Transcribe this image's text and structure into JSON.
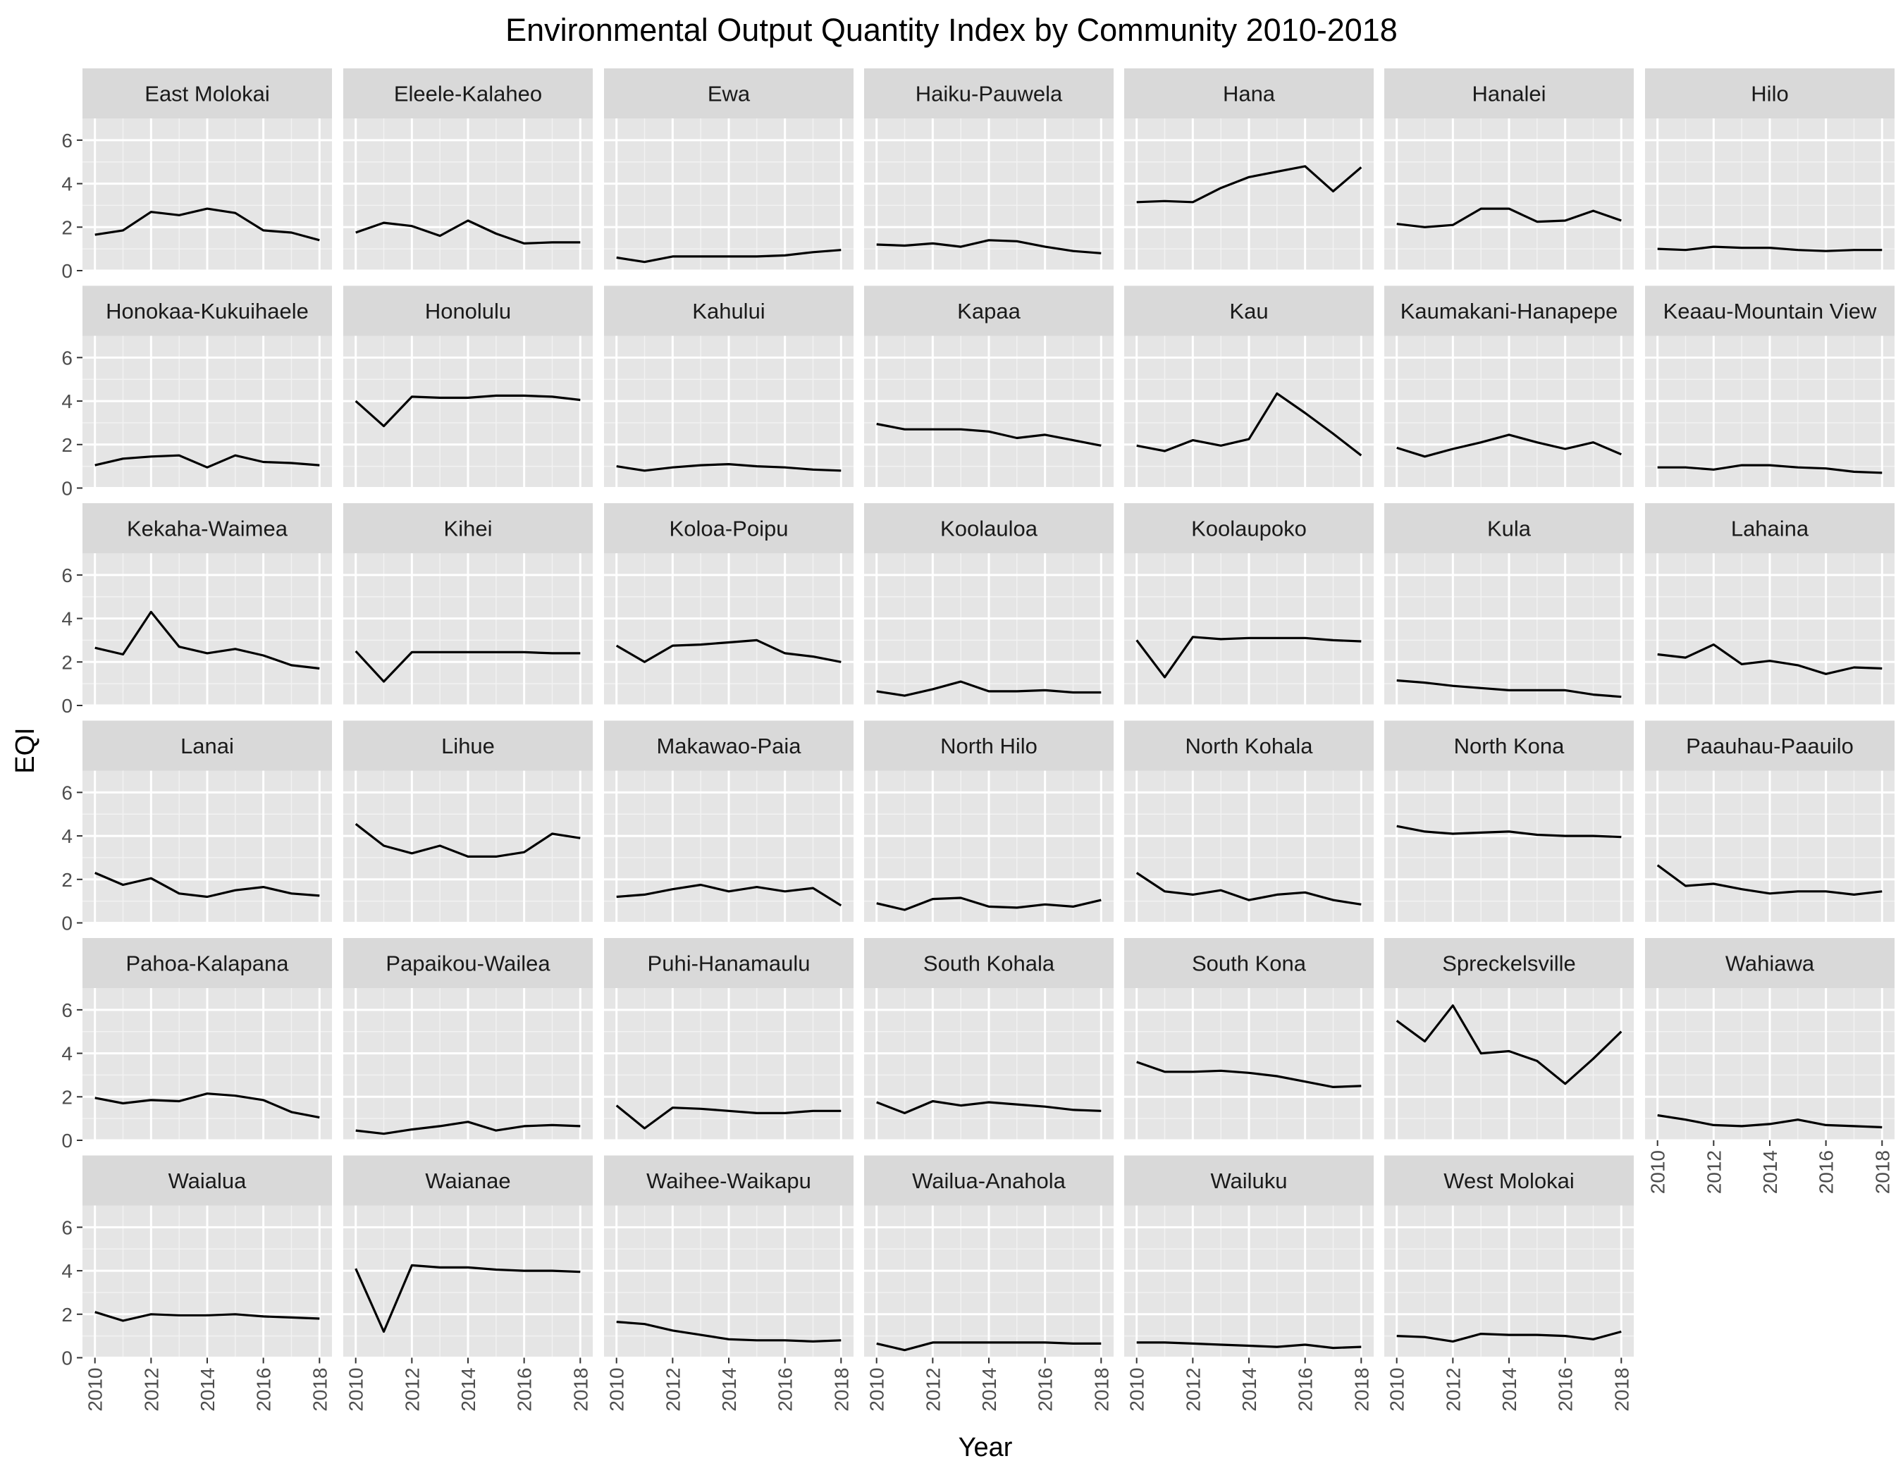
{
  "chart_data": {
    "type": "line",
    "title": "Environmental Output Quantity Index by Community 2010-2018",
    "xlabel": "Year",
    "ylabel": "EQI",
    "x": [
      2010,
      2011,
      2012,
      2013,
      2014,
      2015,
      2016,
      2017,
      2018
    ],
    "x_ticks": [
      2010,
      2012,
      2014,
      2016,
      2018
    ],
    "y_ticks": [
      0,
      2,
      4,
      6
    ],
    "xlim": [
      2010,
      2018
    ],
    "ylim": [
      0,
      7
    ],
    "grid": true,
    "facet_columns": 7,
    "line_color": "#000000",
    "panel_background": "#e5e5e5",
    "strip_background": "#d9d9d9",
    "series": [
      {
        "name": "East Molokai",
        "values": [
          1.65,
          1.85,
          2.7,
          2.55,
          2.85,
          2.65,
          1.85,
          1.75,
          1.4
        ]
      },
      {
        "name": "Eleele-Kalaheo",
        "values": [
          1.75,
          2.2,
          2.05,
          1.6,
          2.3,
          1.7,
          1.25,
          1.3,
          1.3
        ]
      },
      {
        "name": "Ewa",
        "values": [
          0.6,
          0.4,
          0.65,
          0.65,
          0.65,
          0.65,
          0.7,
          0.85,
          0.95
        ]
      },
      {
        "name": "Haiku-Pauwela",
        "values": [
          1.2,
          1.15,
          1.25,
          1.1,
          1.4,
          1.35,
          1.1,
          0.9,
          0.8
        ]
      },
      {
        "name": "Hana",
        "values": [
          3.15,
          3.2,
          3.15,
          3.8,
          4.3,
          4.55,
          4.8,
          3.65,
          4.75
        ]
      },
      {
        "name": "Hanalei",
        "values": [
          2.15,
          2.0,
          2.1,
          2.85,
          2.85,
          2.25,
          2.3,
          2.75,
          2.3
        ]
      },
      {
        "name": "Hilo",
        "values": [
          1.0,
          0.95,
          1.1,
          1.05,
          1.05,
          0.95,
          0.9,
          0.95,
          0.95
        ]
      },
      {
        "name": "Honokaa-Kukuihaele",
        "values": [
          1.05,
          1.35,
          1.45,
          1.5,
          0.95,
          1.5,
          1.2,
          1.15,
          1.05
        ]
      },
      {
        "name": "Honolulu",
        "values": [
          4.0,
          2.85,
          4.2,
          4.15,
          4.15,
          4.25,
          4.25,
          4.2,
          4.05
        ]
      },
      {
        "name": "Kahului",
        "values": [
          1.0,
          0.8,
          0.95,
          1.05,
          1.1,
          1.0,
          0.95,
          0.85,
          0.8
        ]
      },
      {
        "name": "Kapaa",
        "values": [
          2.95,
          2.7,
          2.7,
          2.7,
          2.6,
          2.3,
          2.45,
          2.2,
          1.95
        ]
      },
      {
        "name": "Kau",
        "values": [
          1.95,
          1.7,
          2.2,
          1.95,
          2.25,
          4.35,
          3.45,
          2.5,
          1.5
        ]
      },
      {
        "name": "Kaumakani-Hanapepe",
        "values": [
          1.85,
          1.45,
          1.8,
          2.1,
          2.45,
          2.1,
          1.8,
          2.1,
          1.55
        ]
      },
      {
        "name": "Keaau-Mountain View",
        "values": [
          0.95,
          0.95,
          0.85,
          1.05,
          1.05,
          0.95,
          0.9,
          0.75,
          0.7
        ]
      },
      {
        "name": "Kekaha-Waimea",
        "values": [
          2.65,
          2.35,
          4.3,
          2.7,
          2.4,
          2.6,
          2.3,
          1.85,
          1.7
        ]
      },
      {
        "name": "Kihei",
        "values": [
          2.5,
          1.1,
          2.45,
          2.45,
          2.45,
          2.45,
          2.45,
          2.4,
          2.4
        ]
      },
      {
        "name": "Koloa-Poipu",
        "values": [
          2.75,
          2.0,
          2.75,
          2.8,
          2.9,
          3.0,
          2.4,
          2.25,
          2.0
        ]
      },
      {
        "name": "Koolauloa",
        "values": [
          0.65,
          0.45,
          0.75,
          1.1,
          0.65,
          0.65,
          0.7,
          0.6,
          0.6
        ]
      },
      {
        "name": "Koolaupoko",
        "values": [
          3.0,
          1.3,
          3.15,
          3.05,
          3.1,
          3.1,
          3.1,
          3.0,
          2.95
        ]
      },
      {
        "name": "Kula",
        "values": [
          1.15,
          1.05,
          0.9,
          0.8,
          0.7,
          0.7,
          0.7,
          0.5,
          0.4
        ]
      },
      {
        "name": "Lahaina",
        "values": [
          2.35,
          2.2,
          2.8,
          1.9,
          2.05,
          1.85,
          1.45,
          1.75,
          1.7
        ]
      },
      {
        "name": "Lanai",
        "values": [
          2.3,
          1.75,
          2.05,
          1.35,
          1.2,
          1.5,
          1.65,
          1.35,
          1.25
        ]
      },
      {
        "name": "Lihue",
        "values": [
          4.55,
          3.55,
          3.2,
          3.55,
          3.05,
          3.05,
          3.25,
          4.1,
          3.9
        ]
      },
      {
        "name": "Makawao-Paia",
        "values": [
          1.2,
          1.3,
          1.55,
          1.75,
          1.45,
          1.65,
          1.45,
          1.6,
          0.8
        ]
      },
      {
        "name": "North Hilo",
        "values": [
          0.9,
          0.6,
          1.1,
          1.15,
          0.75,
          0.7,
          0.85,
          0.75,
          1.05
        ]
      },
      {
        "name": "North Kohala",
        "values": [
          2.3,
          1.45,
          1.3,
          1.5,
          1.05,
          1.3,
          1.4,
          1.05,
          0.85
        ]
      },
      {
        "name": "North Kona",
        "values": [
          4.45,
          4.2,
          4.1,
          4.15,
          4.2,
          4.05,
          4.0,
          4.0,
          3.95
        ]
      },
      {
        "name": "Paauhau-Paauilo",
        "values": [
          2.65,
          1.7,
          1.8,
          1.55,
          1.35,
          1.45,
          1.45,
          1.3,
          1.45
        ]
      },
      {
        "name": "Pahoa-Kalapana",
        "values": [
          1.95,
          1.7,
          1.85,
          1.8,
          2.15,
          2.05,
          1.85,
          1.3,
          1.05
        ]
      },
      {
        "name": "Papaikou-Wailea",
        "values": [
          0.45,
          0.3,
          0.5,
          0.65,
          0.85,
          0.45,
          0.65,
          0.7,
          0.65
        ]
      },
      {
        "name": "Puhi-Hanamaulu",
        "values": [
          1.6,
          0.55,
          1.5,
          1.45,
          1.35,
          1.25,
          1.25,
          1.35,
          1.35
        ]
      },
      {
        "name": "South Kohala",
        "values": [
          1.75,
          1.25,
          1.8,
          1.6,
          1.75,
          1.65,
          1.55,
          1.4,
          1.35
        ]
      },
      {
        "name": "South Kona",
        "values": [
          3.6,
          3.15,
          3.15,
          3.2,
          3.1,
          2.95,
          2.7,
          2.45,
          2.5
        ]
      },
      {
        "name": "Spreckelsville",
        "values": [
          5.5,
          4.55,
          6.2,
          4.0,
          4.1,
          3.65,
          2.6,
          3.75,
          5.0
        ]
      },
      {
        "name": "Wahiawa",
        "values": [
          1.15,
          0.95,
          0.7,
          0.65,
          0.75,
          0.95,
          0.7,
          0.65,
          0.6
        ]
      },
      {
        "name": "Waialua",
        "values": [
          2.1,
          1.7,
          2.0,
          1.95,
          1.95,
          2.0,
          1.9,
          1.85,
          1.8
        ]
      },
      {
        "name": "Waianae",
        "values": [
          4.1,
          1.2,
          4.25,
          4.15,
          4.15,
          4.05,
          4.0,
          4.0,
          3.95
        ]
      },
      {
        "name": "Waihee-Waikapu",
        "values": [
          1.65,
          1.55,
          1.25,
          1.05,
          0.85,
          0.8,
          0.8,
          0.75,
          0.8
        ]
      },
      {
        "name": "Wailua-Anahola",
        "values": [
          0.65,
          0.35,
          0.7,
          0.7,
          0.7,
          0.7,
          0.7,
          0.65,
          0.65
        ]
      },
      {
        "name": "Wailuku",
        "values": [
          0.7,
          0.7,
          0.65,
          0.6,
          0.55,
          0.5,
          0.6,
          0.45,
          0.5
        ]
      },
      {
        "name": "West Molokai",
        "values": [
          1.0,
          0.95,
          0.75,
          1.1,
          1.05,
          1.05,
          1.0,
          0.85,
          1.2
        ]
      }
    ]
  }
}
